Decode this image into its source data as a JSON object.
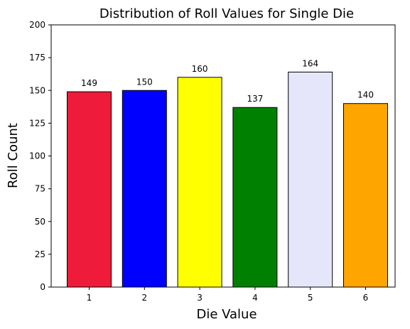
{
  "chart_data": {
    "type": "bar",
    "title": "Distribution of Roll Values for Single Die",
    "xlabel": "Die Value",
    "ylabel": "Roll Count",
    "categories": [
      "1",
      "2",
      "3",
      "4",
      "5",
      "6"
    ],
    "values": [
      149,
      150,
      160,
      137,
      164,
      140
    ],
    "value_labels": [
      "149",
      "150",
      "160",
      "137",
      "164",
      "140"
    ],
    "colors": [
      "#EE1C3A",
      "#0000FF",
      "#FFFF00",
      "#008000",
      "#E6E6FA",
      "#FFA500"
    ],
    "edge_color": "#000000",
    "ylim": [
      0,
      200
    ],
    "yticks": [
      0,
      25,
      50,
      75,
      100,
      125,
      150,
      175,
      200
    ],
    "ytick_labels": [
      "0",
      "25",
      "50",
      "75",
      "100",
      "125",
      "150",
      "175",
      "200"
    ],
    "grid": false,
    "legend": "none"
  }
}
